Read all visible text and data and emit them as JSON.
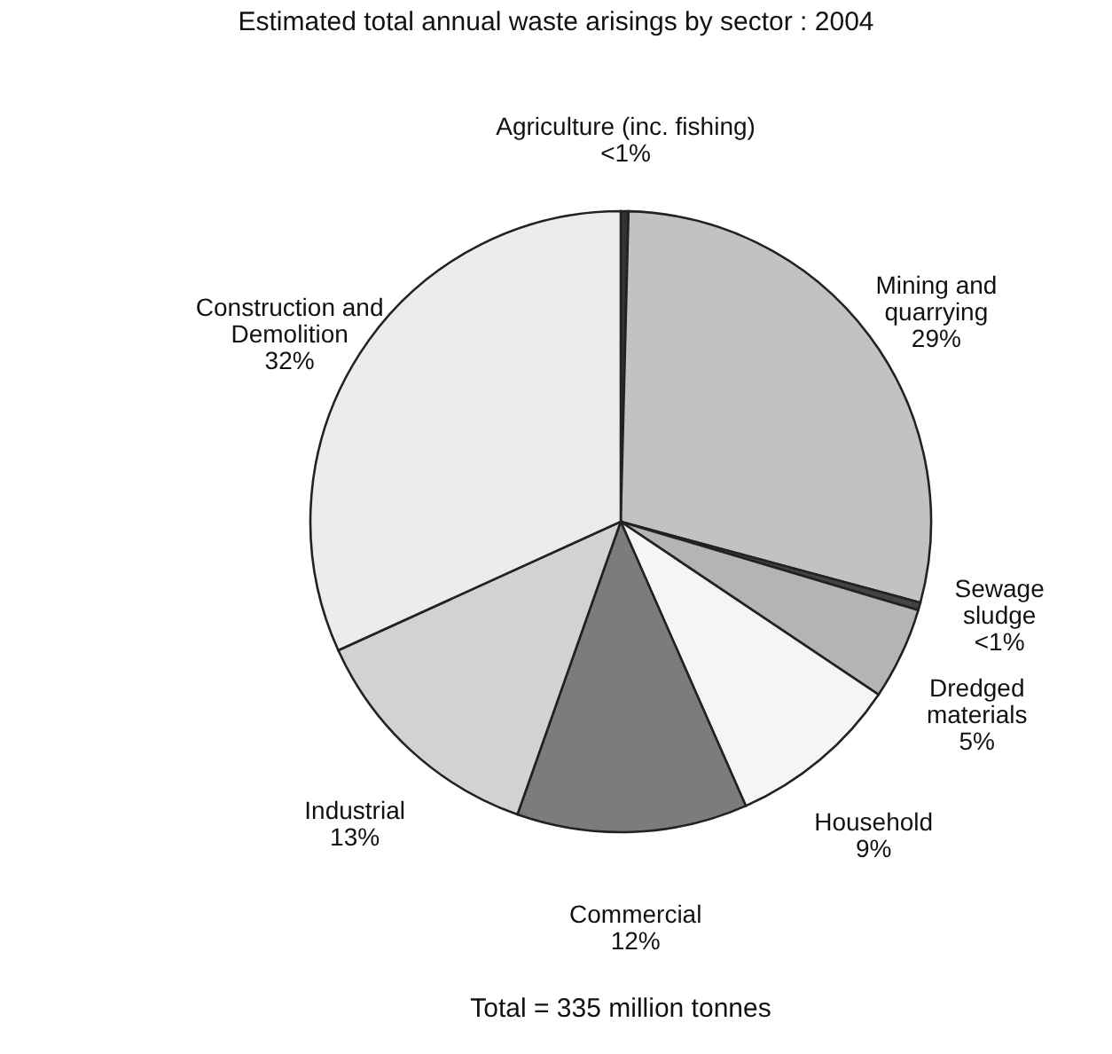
{
  "chart_data": {
    "type": "pie",
    "title": "Estimated total annual waste arisings by sector : 2004",
    "categories": [
      "Agriculture (inc. fishing)",
      "Mining and\nquarrying",
      "Sewage\nsludge",
      "Dredged\nmaterials",
      "Household",
      "Commercial",
      "Industrial",
      "Construction and\nDemolition"
    ],
    "values": [
      0.4,
      28.8,
      0.4,
      4.8,
      9,
      12,
      12.8,
      31.8
    ],
    "value_labels": [
      "<1%",
      "29%",
      "<1%",
      "5%",
      "9%",
      "12%",
      "13%",
      "32%"
    ],
    "colors": [
      "#333333",
      "#c2c2c2",
      "#444444",
      "#b4b4b4",
      "#f5f5f5",
      "#7c7c7c",
      "#d2d2d2",
      "#ececec"
    ],
    "annotations": [
      "Total = 335 million tonnes"
    ]
  }
}
